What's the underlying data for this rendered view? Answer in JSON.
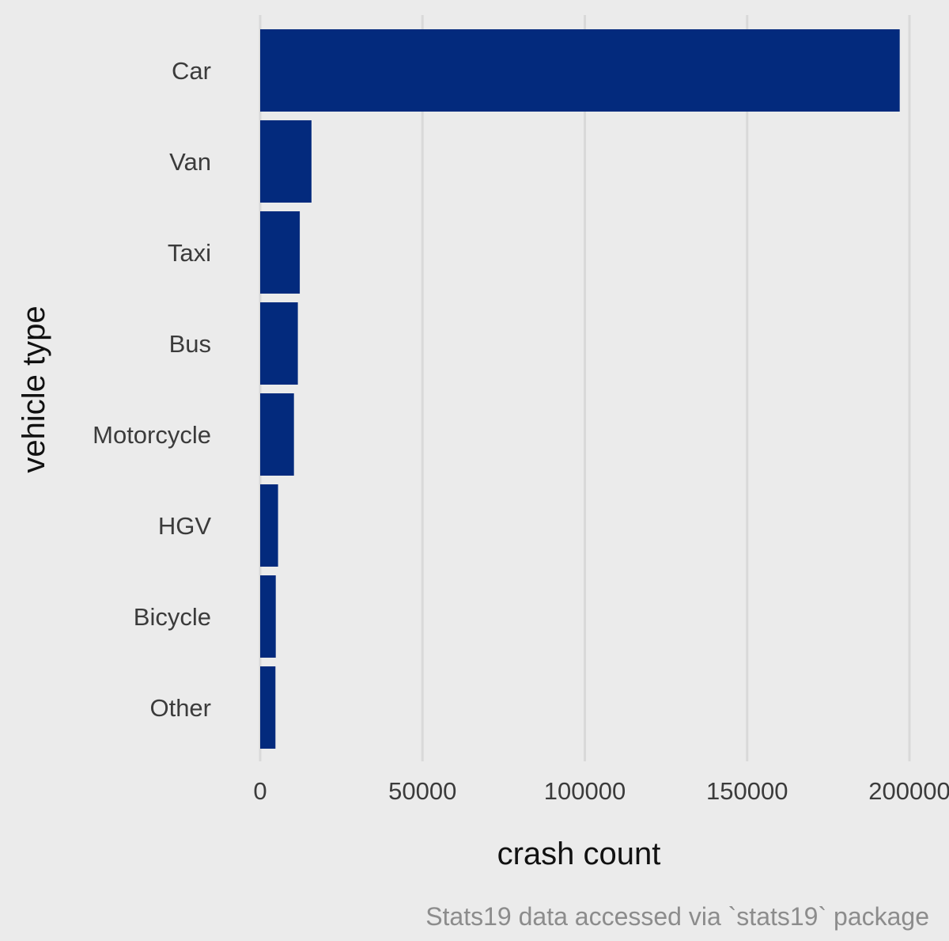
{
  "chart_data": {
    "type": "bar",
    "orientation": "horizontal",
    "categories": [
      "Car",
      "Van",
      "Taxi",
      "Bus",
      "Motorcycle",
      "HGV",
      "Bicycle",
      "Other"
    ],
    "values": [
      197000,
      15800,
      12200,
      11600,
      10400,
      5500,
      4800,
      4700
    ],
    "xlabel": "crash count",
    "ylabel": "vehicle type",
    "caption": "Stats19 data accessed via `stats19` package",
    "xticks": [
      0,
      50000,
      100000,
      150000,
      200000
    ],
    "xlim": [
      0,
      200000
    ],
    "grid": "vertical-major",
    "legend": "none",
    "colors": {
      "bar": "#032a7d",
      "background": "#ebebeb",
      "grid": "#d9d9d9"
    }
  }
}
